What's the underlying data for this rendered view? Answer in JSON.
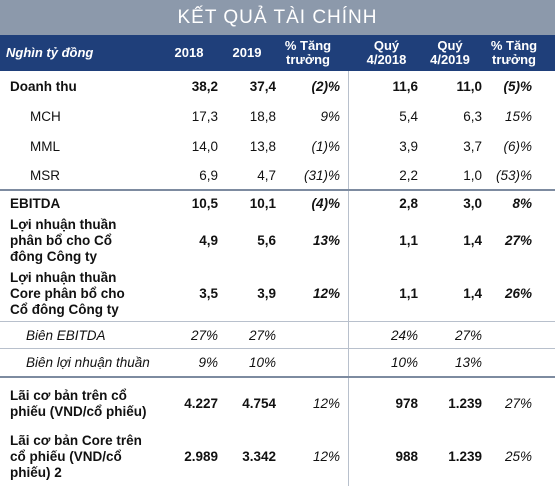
{
  "title": "KẾT QUẢ TÀI CHÍNH",
  "header": {
    "label": "Nghìn tỷ đồng",
    "y2018": "2018",
    "y2019": "2019",
    "growth1": "% Tăng trưởng",
    "q2018": "Quý 4/2018",
    "q2019": "Quý 4/2019",
    "growth2": "% Tăng trưởng"
  },
  "rows": [
    {
      "label": "Doanh thu",
      "y2018": "38,2",
      "y2019": "37,4",
      "g1": "(2)%",
      "q2018": "11,6",
      "q2019": "11,0",
      "g2": "(5)%"
    },
    {
      "label": "MCH",
      "y2018": "17,3",
      "y2019": "18,8",
      "g1": "9%",
      "q2018": "5,4",
      "q2019": "6,3",
      "g2": "15%"
    },
    {
      "label": "MML",
      "y2018": "14,0",
      "y2019": "13,8",
      "g1": "(1)%",
      "q2018": "3,9",
      "q2019": "3,7",
      "g2": "(6)%"
    },
    {
      "label": "MSR",
      "y2018": "6,9",
      "y2019": "4,7",
      "g1": "(31)%",
      "q2018": "2,2",
      "q2019": "1,0",
      "g2": "(53)%"
    },
    {
      "label": "EBITDA",
      "y2018": "10,5",
      "y2019": "10,1",
      "g1": "(4)%",
      "q2018": "2,8",
      "q2019": "3,0",
      "g2": "8%"
    },
    {
      "label": "Lợi nhuận thuần phân bổ cho Cổ đông Công ty",
      "y2018": "4,9",
      "y2019": "5,6",
      "g1": "13%",
      "q2018": "1,1",
      "q2019": "1,4",
      "g2": "27%"
    },
    {
      "label": "Lợi nhuận thuần Core phân bổ cho Cổ đông Công ty",
      "y2018": "3,5",
      "y2019": "3,9",
      "g1": "12%",
      "q2018": "1,1",
      "q2019": "1,4",
      "g2": "26%"
    },
    {
      "label": "Biên EBITDA",
      "y2018": "27%",
      "y2019": "27%",
      "g1": "",
      "q2018": "24%",
      "q2019": "27%",
      "g2": ""
    },
    {
      "label": "Biên lợi nhuận thuần",
      "y2018": "9%",
      "y2019": "10%",
      "g1": "",
      "q2018": "10%",
      "q2019": "13%",
      "g2": ""
    },
    {
      "label": "Lãi cơ bản trên cổ phiếu (VND/cổ phiếu)",
      "y2018": "4.227",
      "y2019": "4.754",
      "g1": "12%",
      "q2018": "978",
      "q2019": "1.239",
      "g2": "27%"
    },
    {
      "label": "Lãi cơ bản Core trên cổ phiếu (VND/cổ phiếu) 2",
      "y2018": "2.989",
      "y2019": "3.342",
      "g1": "12%",
      "q2018": "988",
      "q2019": "1.239",
      "g2": "25%"
    }
  ]
}
